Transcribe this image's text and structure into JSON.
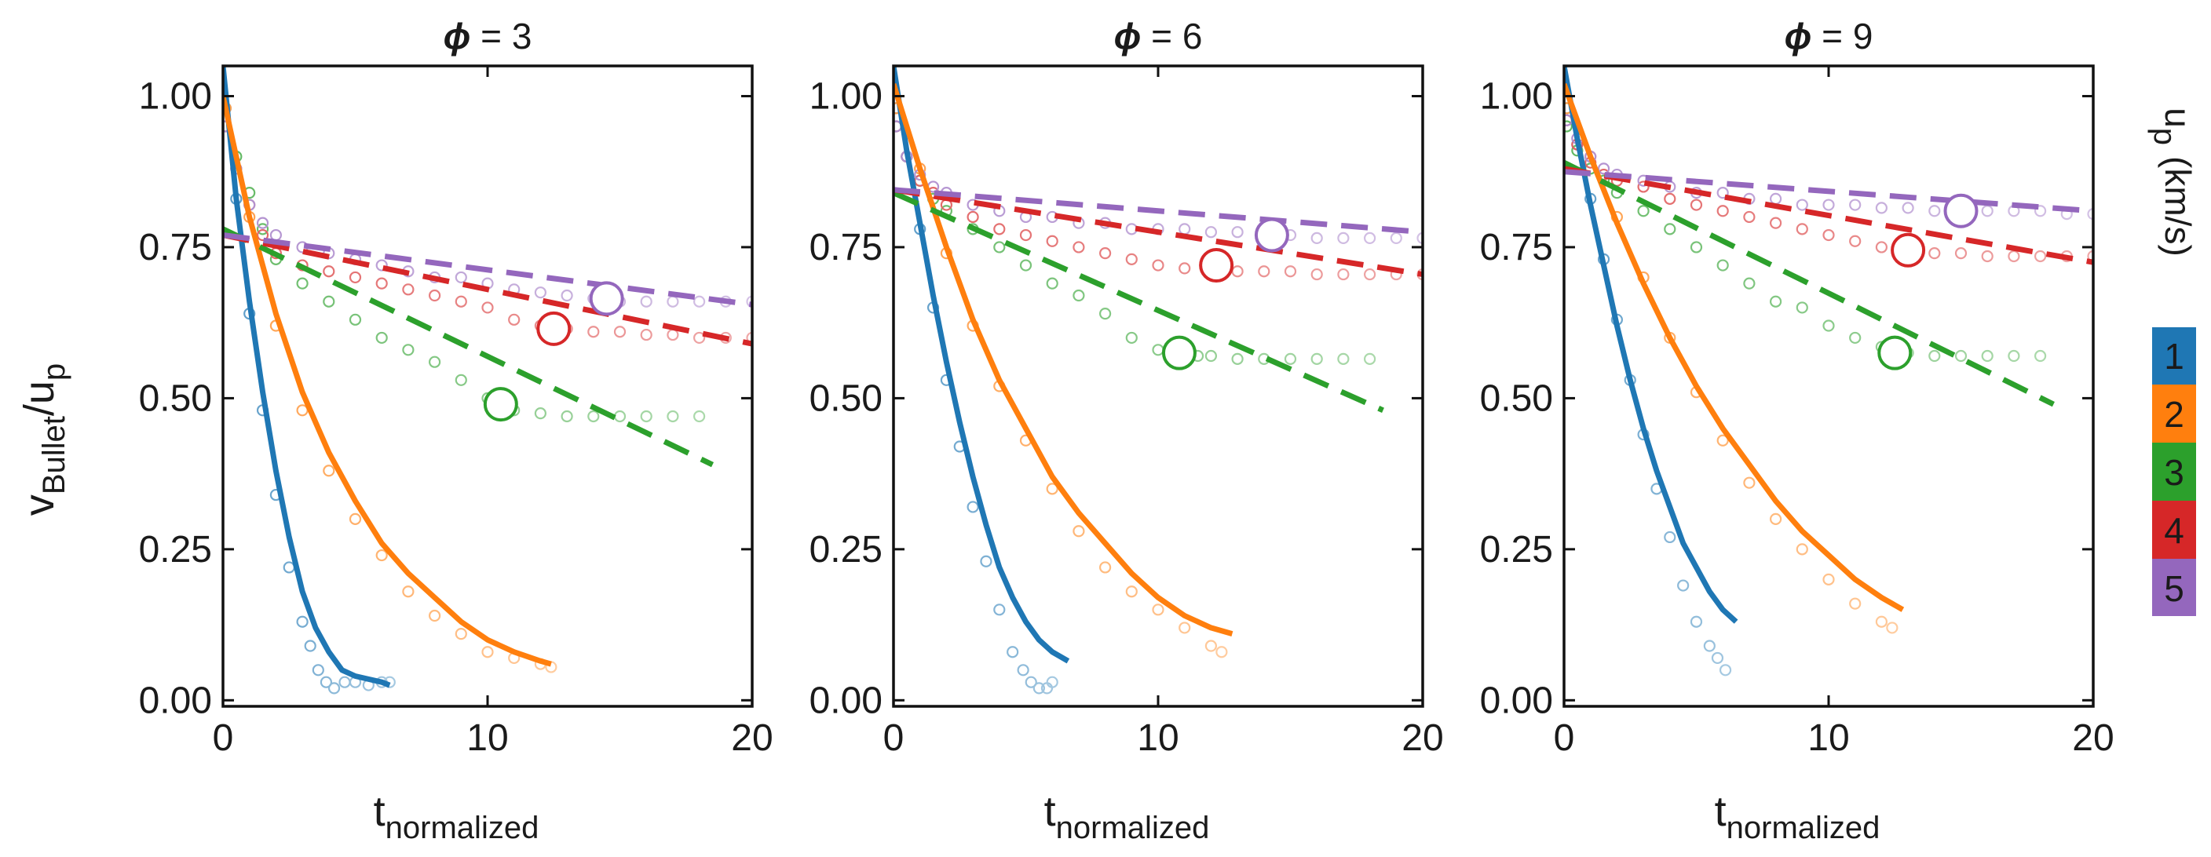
{
  "figure": {
    "ylabel_main": "v",
    "ylabel_sub1": "Bullet",
    "ylabel_mid": "/u",
    "ylabel_sub2": "p",
    "xlabel_main": "t",
    "xlabel_sub": "normalized",
    "colorbar_title_main": "u",
    "colorbar_title_sub": "p",
    "colorbar_title_unit": "(km/s)"
  },
  "chart_data": [
    {
      "type": "line",
      "title": "ϕ = 3",
      "title_symbol": "ϕ",
      "title_rest": " = 3",
      "xlim": [
        0,
        20
      ],
      "ylim": [
        -0.01,
        1.05
      ],
      "xticks": [
        0,
        10,
        20
      ],
      "xtick_labels": [
        "0",
        "10",
        "20"
      ],
      "yticks": [
        0.0,
        0.25,
        0.5,
        0.75,
        1.0
      ],
      "ytick_labels": [
        "0.00",
        "0.25",
        "0.50",
        "0.75",
        "1.00"
      ],
      "series": [
        {
          "name": "1",
          "color": "#1f77b4",
          "points_x": [
            0.1,
            0.5,
            1.0,
            1.5,
            2.0,
            2.5,
            3.0,
            3.3,
            3.6,
            3.9,
            4.2,
            4.6,
            5.0,
            5.5,
            6.0,
            6.3
          ],
          "points_y": [
            0.98,
            0.83,
            0.64,
            0.48,
            0.34,
            0.22,
            0.13,
            0.09,
            0.05,
            0.03,
            0.02,
            0.03,
            0.03,
            0.025,
            0.03,
            0.03
          ],
          "fit_x": [
            0.0,
            0.5,
            1.0,
            1.5,
            2.0,
            2.5,
            3.0,
            3.5,
            4.0,
            4.5,
            5.0,
            5.5,
            6.0,
            6.3
          ],
          "fit_y": [
            1.05,
            0.83,
            0.66,
            0.51,
            0.38,
            0.27,
            0.18,
            0.12,
            0.08,
            0.05,
            0.04,
            0.035,
            0.03,
            0.025
          ],
          "fit_style": "solid"
        },
        {
          "name": "2",
          "color": "#ff7f0e",
          "points_x": [
            0.1,
            1,
            2,
            3,
            4,
            5,
            6,
            7,
            8,
            9,
            10,
            11,
            12,
            12.4
          ],
          "points_y": [
            0.98,
            0.8,
            0.62,
            0.48,
            0.38,
            0.3,
            0.24,
            0.18,
            0.14,
            0.11,
            0.08,
            0.07,
            0.06,
            0.055
          ],
          "fit_x": [
            0,
            1,
            2,
            3,
            4,
            5,
            6,
            7,
            8,
            9,
            10,
            11,
            12,
            12.4
          ],
          "fit_y": [
            1.0,
            0.8,
            0.64,
            0.51,
            0.41,
            0.33,
            0.26,
            0.21,
            0.17,
            0.13,
            0.1,
            0.08,
            0.065,
            0.06
          ],
          "fit_style": "solid"
        },
        {
          "name": "3",
          "color": "#2ca02c",
          "points_x": [
            0.1,
            0.5,
            1,
            1.5,
            2,
            3,
            4,
            5,
            6,
            7,
            8,
            9,
            10,
            10.5,
            11,
            12,
            13,
            14,
            15,
            16,
            17,
            18
          ],
          "points_y": [
            0.95,
            0.9,
            0.84,
            0.78,
            0.73,
            0.69,
            0.66,
            0.63,
            0.6,
            0.58,
            0.56,
            0.53,
            0.5,
            0.48,
            0.48,
            0.475,
            0.47,
            0.47,
            0.47,
            0.47,
            0.47,
            0.47
          ],
          "fit_x": [
            0,
            18.5
          ],
          "fit_y": [
            0.78,
            0.39
          ],
          "fit_style": "dashed",
          "marker": [
            10.5,
            0.49
          ]
        },
        {
          "name": "4",
          "color": "#d62728",
          "points_x": [
            0.1,
            0.5,
            1,
            1.5,
            2,
            3,
            4,
            5,
            6,
            7,
            8,
            9,
            10,
            11,
            12,
            13,
            14,
            15,
            16,
            17,
            18,
            19,
            20
          ],
          "points_y": [
            0.95,
            0.88,
            0.82,
            0.77,
            0.74,
            0.72,
            0.71,
            0.7,
            0.69,
            0.68,
            0.67,
            0.66,
            0.65,
            0.63,
            0.62,
            0.615,
            0.61,
            0.61,
            0.605,
            0.605,
            0.6,
            0.6,
            0.6
          ],
          "fit_x": [
            0,
            20
          ],
          "fit_y": [
            0.77,
            0.59
          ],
          "fit_style": "dashed",
          "marker": [
            12.5,
            0.615
          ]
        },
        {
          "name": "5",
          "color": "#9467bd",
          "points_x": [
            0.1,
            0.5,
            1,
            1.5,
            2,
            3,
            4,
            5,
            6,
            7,
            8,
            9,
            10,
            11,
            12,
            13,
            14,
            15,
            16,
            17,
            18,
            19,
            20
          ],
          "points_y": [
            0.95,
            0.88,
            0.82,
            0.79,
            0.77,
            0.75,
            0.74,
            0.73,
            0.72,
            0.71,
            0.7,
            0.7,
            0.69,
            0.68,
            0.675,
            0.67,
            0.665,
            0.66,
            0.66,
            0.66,
            0.66,
            0.66,
            0.66
          ],
          "fit_x": [
            0,
            20
          ],
          "fit_y": [
            0.77,
            0.655
          ],
          "fit_style": "dashed",
          "marker": [
            14.5,
            0.665
          ]
        }
      ]
    },
    {
      "type": "line",
      "title": "ϕ = 6",
      "title_symbol": "ϕ",
      "title_rest": " = 6",
      "xlim": [
        0,
        20
      ],
      "ylim": [
        -0.01,
        1.05
      ],
      "xticks": [
        0,
        10,
        20
      ],
      "xtick_labels": [
        "0",
        "10",
        "20"
      ],
      "yticks": [
        0.0,
        0.25,
        0.5,
        0.75,
        1.0
      ],
      "ytick_labels": [
        "0.00",
        "0.25",
        "0.50",
        "0.75",
        "1.00"
      ],
      "series": [
        {
          "name": "1",
          "color": "#1f77b4",
          "points_x": [
            0.1,
            0.5,
            1.0,
            1.5,
            2.0,
            2.5,
            3.0,
            3.5,
            4.0,
            4.5,
            4.9,
            5.2,
            5.5,
            5.8,
            6.0
          ],
          "points_y": [
            0.98,
            0.9,
            0.78,
            0.65,
            0.53,
            0.42,
            0.32,
            0.23,
            0.15,
            0.08,
            0.05,
            0.03,
            0.02,
            0.02,
            0.03
          ],
          "fit_x": [
            0.0,
            0.5,
            1.0,
            1.5,
            2.0,
            2.5,
            3.0,
            3.5,
            4.0,
            4.5,
            5.0,
            5.5,
            6.0,
            6.6
          ],
          "fit_y": [
            1.05,
            0.91,
            0.79,
            0.67,
            0.56,
            0.46,
            0.37,
            0.29,
            0.22,
            0.17,
            0.13,
            0.1,
            0.08,
            0.065
          ],
          "fit_style": "solid"
        },
        {
          "name": "2",
          "color": "#ff7f0e",
          "points_x": [
            0.1,
            1,
            2,
            3,
            4,
            5,
            6,
            7,
            8,
            9,
            10,
            11,
            12,
            12.4
          ],
          "points_y": [
            0.98,
            0.88,
            0.74,
            0.62,
            0.52,
            0.43,
            0.35,
            0.28,
            0.22,
            0.18,
            0.15,
            0.12,
            0.09,
            0.08
          ],
          "fit_x": [
            0,
            1,
            2,
            3,
            4,
            5,
            6,
            7,
            8,
            9,
            10,
            11,
            12,
            12.8
          ],
          "fit_y": [
            1.02,
            0.88,
            0.75,
            0.63,
            0.53,
            0.45,
            0.37,
            0.31,
            0.26,
            0.21,
            0.17,
            0.14,
            0.12,
            0.11
          ],
          "fit_style": "solid"
        },
        {
          "name": "3",
          "color": "#2ca02c",
          "points_x": [
            0.1,
            0.5,
            1,
            1.5,
            2,
            3,
            4,
            5,
            6,
            7,
            8,
            9,
            10,
            10.8,
            11.5,
            12,
            13,
            14,
            15,
            16,
            17,
            18
          ],
          "points_y": [
            0.95,
            0.9,
            0.86,
            0.83,
            0.81,
            0.78,
            0.75,
            0.72,
            0.69,
            0.67,
            0.64,
            0.6,
            0.58,
            0.575,
            0.57,
            0.57,
            0.565,
            0.565,
            0.565,
            0.565,
            0.565,
            0.565
          ],
          "fit_x": [
            0,
            18.5
          ],
          "fit_y": [
            0.84,
            0.48
          ],
          "fit_style": "dashed",
          "marker": [
            10.8,
            0.575
          ]
        },
        {
          "name": "4",
          "color": "#d62728",
          "points_x": [
            0.1,
            0.5,
            1,
            1.5,
            2,
            3,
            4,
            5,
            6,
            7,
            8,
            9,
            10,
            11,
            12,
            13,
            14,
            15,
            16,
            17,
            18,
            19,
            20
          ],
          "points_y": [
            0.95,
            0.9,
            0.86,
            0.84,
            0.82,
            0.8,
            0.78,
            0.77,
            0.76,
            0.75,
            0.74,
            0.73,
            0.72,
            0.715,
            0.71,
            0.71,
            0.71,
            0.71,
            0.705,
            0.705,
            0.705,
            0.705,
            0.705
          ],
          "fit_x": [
            0,
            20
          ],
          "fit_y": [
            0.845,
            0.705
          ],
          "fit_style": "dashed",
          "marker": [
            12.2,
            0.72
          ]
        },
        {
          "name": "5",
          "color": "#9467bd",
          "points_x": [
            0.1,
            0.5,
            1,
            1.5,
            2,
            3,
            4,
            5,
            6,
            7,
            8,
            9,
            10,
            11,
            12,
            13,
            14,
            15,
            16,
            17,
            18,
            19,
            20
          ],
          "points_y": [
            0.95,
            0.9,
            0.87,
            0.85,
            0.84,
            0.82,
            0.81,
            0.8,
            0.8,
            0.79,
            0.79,
            0.78,
            0.78,
            0.78,
            0.775,
            0.775,
            0.77,
            0.77,
            0.765,
            0.765,
            0.765,
            0.765,
            0.765
          ],
          "fit_x": [
            0,
            20
          ],
          "fit_y": [
            0.845,
            0.775
          ],
          "fit_style": "dashed",
          "marker": [
            14.3,
            0.77
          ]
        }
      ]
    },
    {
      "type": "line",
      "title": "ϕ = 9",
      "title_symbol": "ϕ",
      "title_rest": " = 9",
      "xlim": [
        0,
        20
      ],
      "ylim": [
        -0.01,
        1.05
      ],
      "xticks": [
        0,
        10,
        20
      ],
      "xtick_labels": [
        "0",
        "10",
        "20"
      ],
      "yticks": [
        0.0,
        0.25,
        0.5,
        0.75,
        1.0
      ],
      "ytick_labels": [
        "0.00",
        "0.25",
        "0.50",
        "0.75",
        "1.00"
      ],
      "series": [
        {
          "name": "1",
          "color": "#1f77b4",
          "points_x": [
            0.1,
            0.5,
            1.0,
            1.5,
            2.0,
            2.5,
            3.0,
            3.5,
            4.0,
            4.5,
            5.0,
            5.5,
            5.8,
            6.1
          ],
          "points_y": [
            0.98,
            0.92,
            0.83,
            0.73,
            0.63,
            0.53,
            0.44,
            0.35,
            0.27,
            0.19,
            0.13,
            0.09,
            0.07,
            0.05
          ],
          "fit_x": [
            0.0,
            0.5,
            1.0,
            1.5,
            2.0,
            2.5,
            3.0,
            3.5,
            4.0,
            4.5,
            5.0,
            5.5,
            6.0,
            6.5
          ],
          "fit_y": [
            1.05,
            0.93,
            0.82,
            0.72,
            0.62,
            0.53,
            0.45,
            0.38,
            0.32,
            0.26,
            0.22,
            0.18,
            0.15,
            0.13
          ],
          "fit_style": "solid"
        },
        {
          "name": "2",
          "color": "#ff7f0e",
          "points_x": [
            0.1,
            1,
            2,
            3,
            4,
            5,
            6,
            7,
            8,
            9,
            10,
            11,
            12,
            12.4
          ],
          "points_y": [
            0.98,
            0.9,
            0.8,
            0.7,
            0.6,
            0.51,
            0.43,
            0.36,
            0.3,
            0.25,
            0.2,
            0.16,
            0.13,
            0.12
          ],
          "fit_x": [
            0,
            1,
            2,
            3,
            4,
            5,
            6,
            7,
            8,
            9,
            10,
            11,
            12,
            12.8
          ],
          "fit_y": [
            1.02,
            0.9,
            0.79,
            0.69,
            0.6,
            0.52,
            0.45,
            0.39,
            0.33,
            0.28,
            0.24,
            0.2,
            0.17,
            0.15
          ],
          "fit_style": "solid"
        },
        {
          "name": "3",
          "color": "#2ca02c",
          "points_x": [
            0.1,
            0.5,
            1,
            1.5,
            2,
            3,
            4,
            5,
            6,
            7,
            8,
            9,
            10,
            11,
            12,
            12.5,
            13,
            14,
            15,
            16,
            17,
            18
          ],
          "points_y": [
            0.95,
            0.91,
            0.88,
            0.86,
            0.84,
            0.81,
            0.78,
            0.75,
            0.72,
            0.69,
            0.66,
            0.65,
            0.62,
            0.6,
            0.585,
            0.58,
            0.575,
            0.57,
            0.57,
            0.57,
            0.57,
            0.57
          ],
          "fit_x": [
            0,
            18.5
          ],
          "fit_y": [
            0.89,
            0.49
          ],
          "fit_style": "dashed",
          "marker": [
            12.5,
            0.575
          ]
        },
        {
          "name": "4",
          "color": "#d62728",
          "points_x": [
            0.1,
            0.5,
            1,
            1.5,
            2,
            3,
            4,
            5,
            6,
            7,
            8,
            9,
            10,
            11,
            12,
            13,
            14,
            15,
            16,
            17,
            18,
            19,
            20
          ],
          "points_y": [
            0.96,
            0.92,
            0.89,
            0.87,
            0.86,
            0.85,
            0.83,
            0.82,
            0.81,
            0.8,
            0.79,
            0.78,
            0.77,
            0.76,
            0.75,
            0.745,
            0.74,
            0.74,
            0.735,
            0.735,
            0.735,
            0.735,
            0.735
          ],
          "fit_x": [
            0,
            20
          ],
          "fit_y": [
            0.88,
            0.725
          ],
          "fit_style": "dashed",
          "marker": [
            13.0,
            0.745
          ]
        },
        {
          "name": "5",
          "color": "#9467bd",
          "points_x": [
            0.1,
            0.5,
            1,
            1.5,
            2,
            3,
            4,
            5,
            6,
            7,
            8,
            9,
            10,
            11,
            12,
            13,
            14,
            15,
            16,
            17,
            18,
            19,
            20
          ],
          "points_y": [
            0.96,
            0.93,
            0.9,
            0.88,
            0.87,
            0.86,
            0.85,
            0.84,
            0.84,
            0.83,
            0.83,
            0.82,
            0.82,
            0.82,
            0.815,
            0.815,
            0.81,
            0.81,
            0.81,
            0.81,
            0.81,
            0.805,
            0.805
          ],
          "fit_x": [
            0,
            20
          ],
          "fit_y": [
            0.875,
            0.81
          ],
          "fit_style": "dashed",
          "marker": [
            15.0,
            0.81
          ]
        }
      ]
    }
  ],
  "colorbar": {
    "levels": [
      "1",
      "2",
      "3",
      "4",
      "5"
    ],
    "colors": [
      "#1f77b4",
      "#ff7f0e",
      "#2ca02c",
      "#d62728",
      "#9467bd"
    ]
  }
}
